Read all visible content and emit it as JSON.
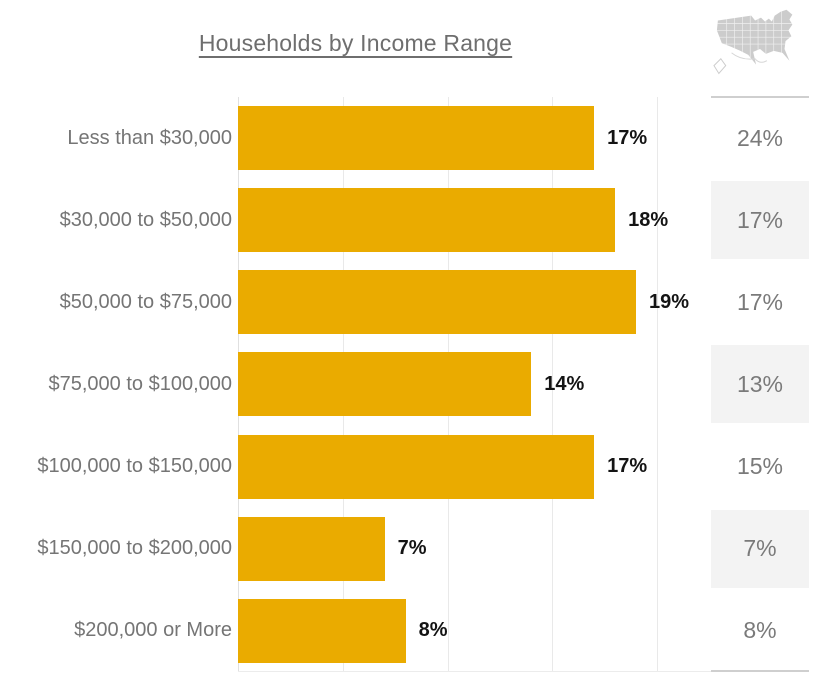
{
  "title": "Households by Income Range",
  "header": {
    "us_map_icon": "us-map-icon"
  },
  "chart_data": {
    "type": "bar",
    "orientation": "horizontal",
    "title": "Households by Income Range",
    "categories": [
      "Less than $30,000",
      "$30,000 to $50,000",
      "$50,000 to $75,000",
      "$75,000 to $100,000",
      "$100,000 to $150,000",
      "$150,000 to $200,000",
      "$200,000 or More"
    ],
    "series": [
      {
        "name": "Households",
        "values": [
          17,
          18,
          19,
          14,
          17,
          7,
          8
        ],
        "labels": [
          "17%",
          "18%",
          "19%",
          "14%",
          "17%",
          "7%",
          "8%"
        ],
        "color": "#eaab00"
      },
      {
        "name": "United States",
        "values": [
          24,
          17,
          17,
          13,
          15,
          7,
          8
        ],
        "labels": [
          "24%",
          "17%",
          "17%",
          "13%",
          "15%",
          "7%",
          "8%"
        ]
      }
    ],
    "xlim": [
      0,
      22.6
    ],
    "x_gridlines": [
      0,
      5,
      10,
      15,
      20
    ],
    "grid": true,
    "legend_position": "none"
  },
  "colors": {
    "bar": "#eaab00",
    "category_text": "#757575",
    "bar_value_text": "#141414",
    "comparison_text": "#7a7a7a",
    "alt_row_bg": "#f3f3f3",
    "gridline": "#e9e9e9",
    "divider": "#cfcfcf",
    "map_fill": "#cccccc",
    "title_text": "#6e6e6e"
  }
}
